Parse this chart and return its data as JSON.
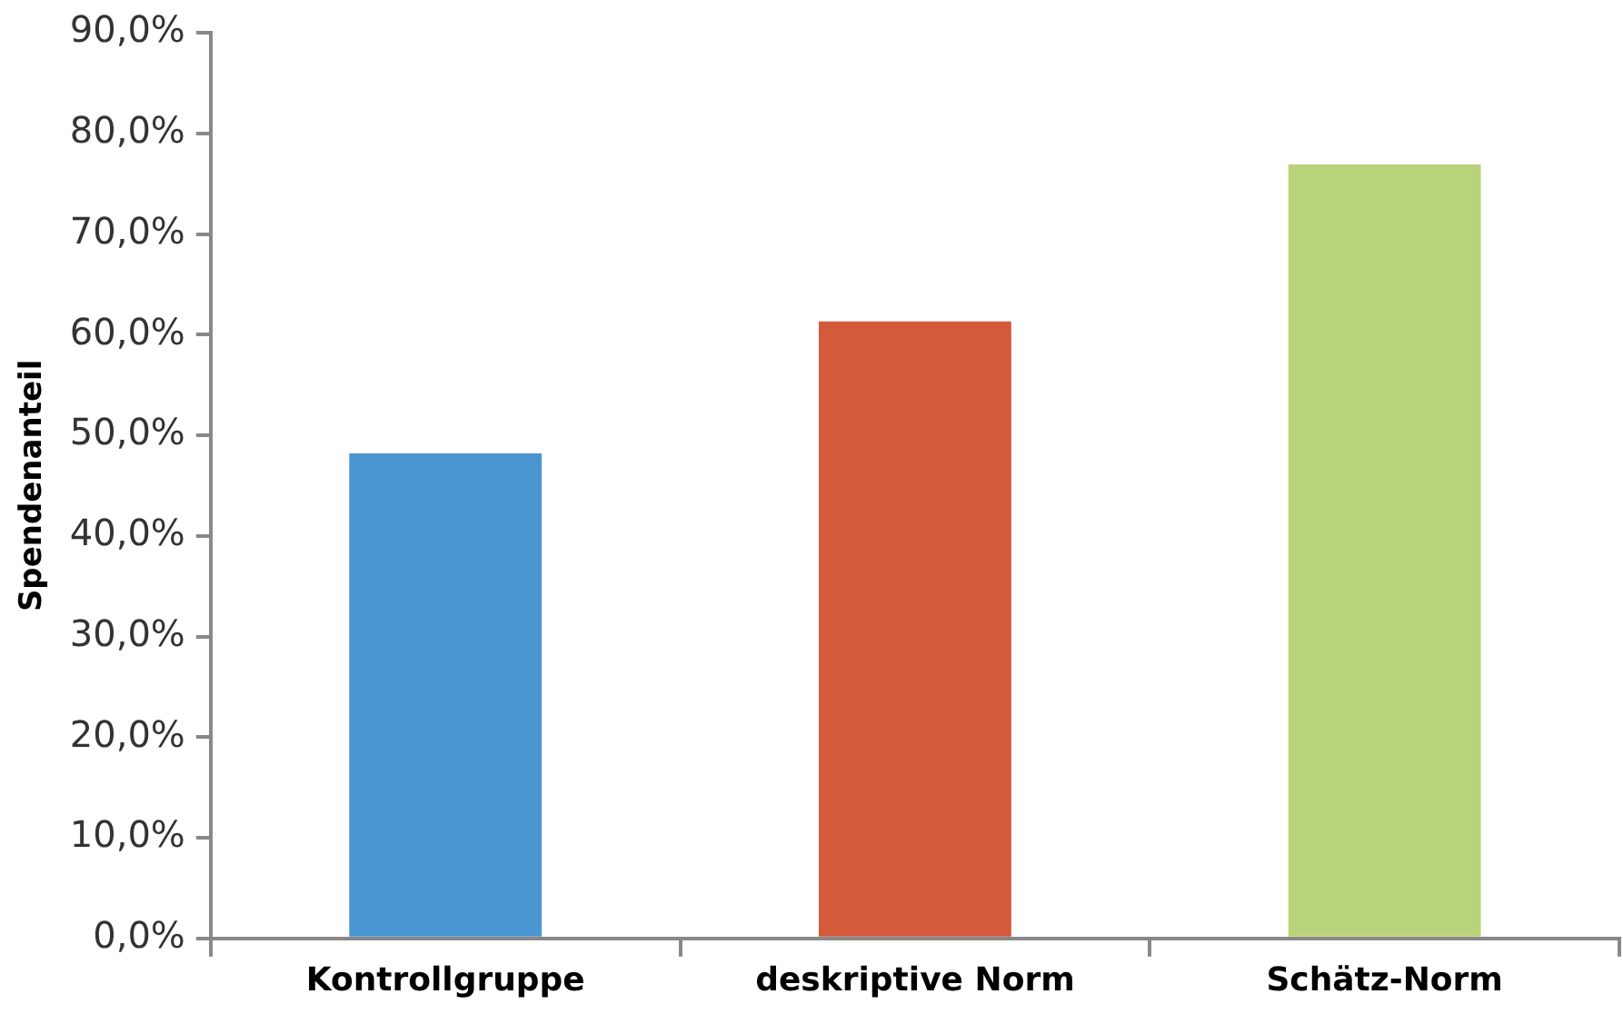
{
  "chart_data": {
    "type": "bar",
    "ylabel": "Spendenanteil",
    "categories": [
      "Kontrollgruppe",
      "deskriptive Norm",
      "Schätz-Norm"
    ],
    "values": [
      48.2,
      61.3,
      76.9
    ],
    "colors": [
      "#4a96d2",
      "#d35a3b",
      "#b9d37a"
    ],
    "ylim": [
      0,
      90
    ],
    "yticks": [
      {
        "value": 0,
        "label": "0,0%"
      },
      {
        "value": 10,
        "label": "10,0%"
      },
      {
        "value": 20,
        "label": "20,0%"
      },
      {
        "value": 30,
        "label": "30,0%"
      },
      {
        "value": 40,
        "label": "40,0%"
      },
      {
        "value": 50,
        "label": "50,0%"
      },
      {
        "value": 60,
        "label": "60,0%"
      },
      {
        "value": 70,
        "label": "70,0%"
      },
      {
        "value": 80,
        "label": "80,0%"
      },
      {
        "value": 90,
        "label": "90,0%"
      }
    ],
    "grid": false,
    "legend": false
  }
}
